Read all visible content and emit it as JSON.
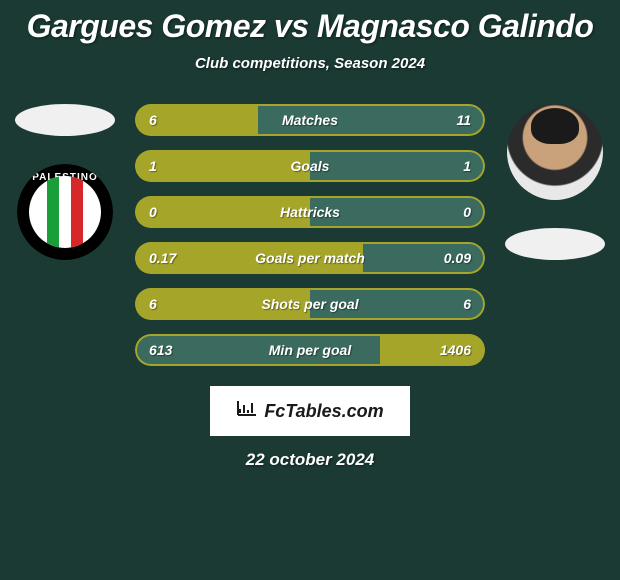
{
  "title": "Gargues Gomez vs Magnasco Galindo",
  "subtitle": "Club competitions, Season 2024",
  "date": "22 october 2024",
  "footer_brand": "FcTables.com",
  "colors": {
    "background": "#1a3a33",
    "title_text": "#ffffff",
    "subtitle_text": "#ffffff",
    "stat_text": "#ffffff",
    "stat_olive": "#a5a52a",
    "stat_teal": "#3a6b5e",
    "stat_border": "#a5a52a",
    "footer_bg": "#ffffff",
    "footer_text": "#1a1a1a",
    "oval_bg": "#f0f0f0"
  },
  "left_player": {
    "club_name": "PALESTINO"
  },
  "stats": [
    {
      "label": "Matches",
      "left_value": "6",
      "right_value": "11",
      "left_pct": 35,
      "right_pct": 65,
      "left_color": "#a5a52a",
      "right_color": "#3a6b5e"
    },
    {
      "label": "Goals",
      "left_value": "1",
      "right_value": "1",
      "left_pct": 50,
      "right_pct": 50,
      "left_color": "#a5a52a",
      "right_color": "#3a6b5e"
    },
    {
      "label": "Hattricks",
      "left_value": "0",
      "right_value": "0",
      "left_pct": 50,
      "right_pct": 50,
      "left_color": "#a5a52a",
      "right_color": "#3a6b5e"
    },
    {
      "label": "Goals per match",
      "left_value": "0.17",
      "right_value": "0.09",
      "left_pct": 65,
      "right_pct": 35,
      "left_color": "#a5a52a",
      "right_color": "#3a6b5e"
    },
    {
      "label": "Shots per goal",
      "left_value": "6",
      "right_value": "6",
      "left_pct": 50,
      "right_pct": 50,
      "left_color": "#a5a52a",
      "right_color": "#3a6b5e"
    },
    {
      "label": "Min per goal",
      "left_value": "613",
      "right_value": "1406",
      "left_pct": 70,
      "right_pct": 30,
      "left_color": "#3a6b5e",
      "right_color": "#a5a52a"
    }
  ]
}
